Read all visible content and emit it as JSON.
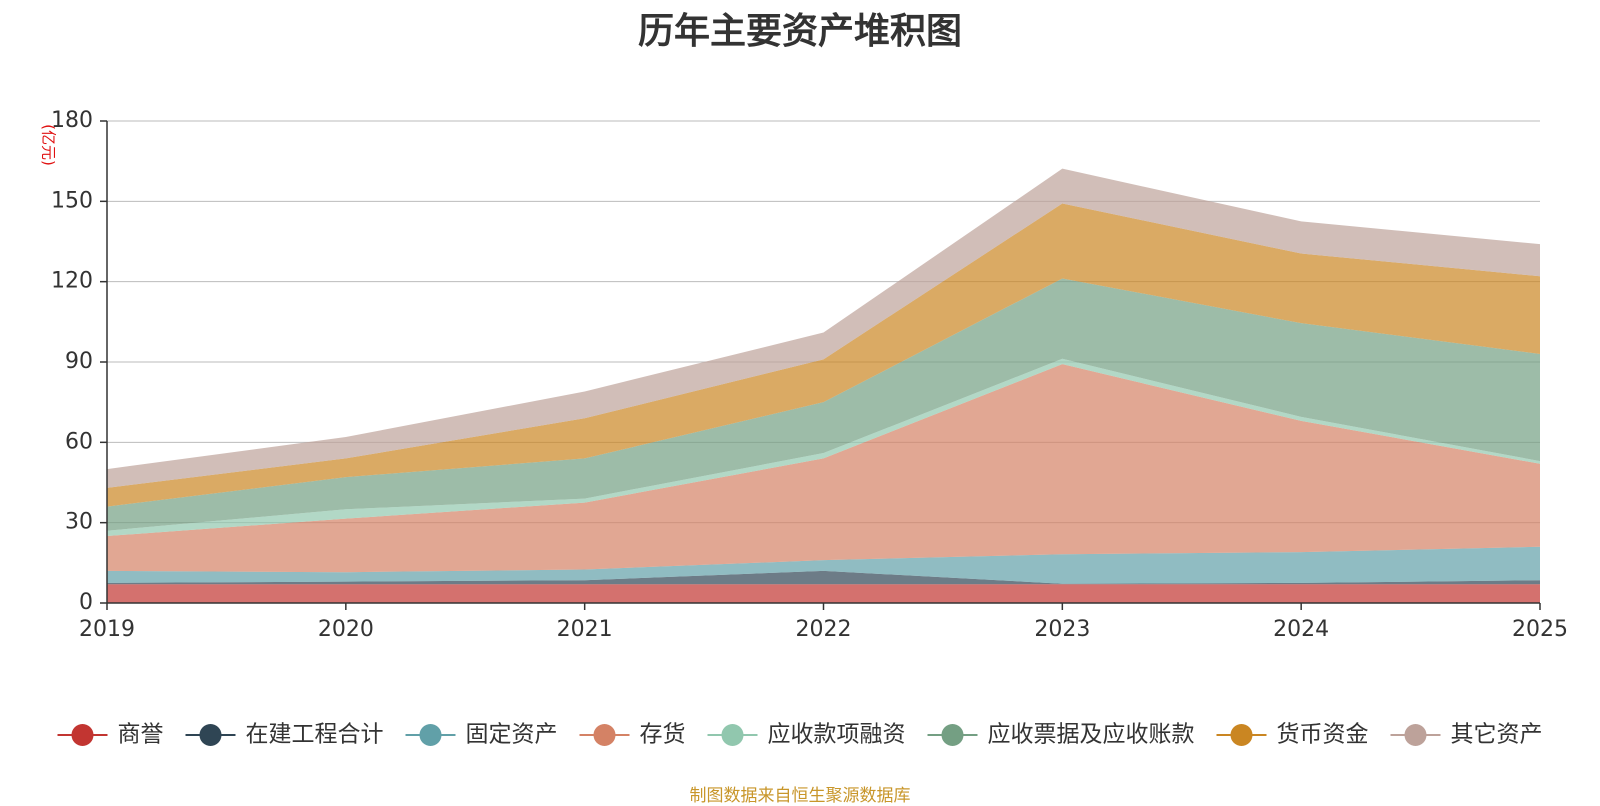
{
  "chart_data": {
    "type": "area",
    "stacked": true,
    "title": "历年主要资产堆积图",
    "unit": "(亿元)",
    "xlabel": "",
    "ylabel": "(亿元)",
    "x": [
      "2019",
      "2020",
      "2021",
      "2022",
      "2023",
      "2024",
      "2025"
    ],
    "ylim": [
      0,
      180
    ],
    "yticks": [
      0,
      30,
      60,
      90,
      120,
      150,
      180
    ],
    "grid": true,
    "legend_position": "bottom",
    "series": [
      {
        "name": "商誉",
        "color": "#c23531",
        "values": [
          7,
          7,
          7,
          7,
          7,
          7,
          7
        ]
      },
      {
        "name": "在建工程合计",
        "color": "#2f4554",
        "values": [
          0.5,
          1,
          1.5,
          5,
          0.2,
          0.5,
          1.5
        ]
      },
      {
        "name": "固定资产",
        "color": "#61a0a8",
        "values": [
          4.5,
          3.5,
          4,
          4,
          11,
          11.5,
          12.5
        ]
      },
      {
        "name": "存货",
        "color": "#d48265",
        "values": [
          13,
          20,
          25,
          38,
          71,
          49,
          31
        ]
      },
      {
        "name": "应收款项融资",
        "color": "#91c7ae",
        "values": [
          2,
          3.5,
          1.5,
          2,
          2,
          1.5,
          1
        ]
      },
      {
        "name": "应收票据及应收账款",
        "color": "#749f83",
        "values": [
          9,
          12,
          15,
          19,
          30,
          35,
          40
        ]
      },
      {
        "name": "货币资金",
        "color": "#ca8622",
        "values": [
          7,
          7,
          15,
          16,
          28,
          26,
          29
        ]
      },
      {
        "name": "其它资产",
        "color": "#bda29a",
        "values": [
          7,
          8,
          10,
          10,
          13,
          12,
          12
        ]
      }
    ]
  },
  "source_note": "制图数据来自恒生聚源数据库"
}
